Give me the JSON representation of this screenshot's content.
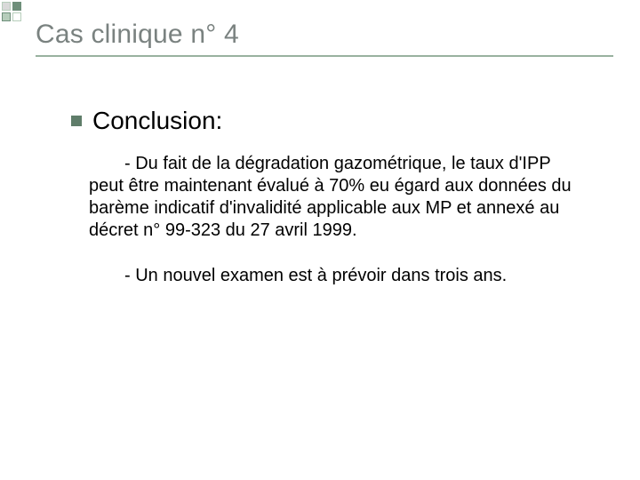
{
  "decor": {
    "squares": [
      {
        "bg": "#d9d9d9",
        "border": "#b6cdbb"
      },
      {
        "bg": "#6e8f7a",
        "border": "#6e8f7a"
      },
      {
        "bg": "#b6cdbb",
        "border": "#6e8f7a"
      },
      {
        "bg": "#ffffff",
        "border": "#b6cdbb"
      }
    ]
  },
  "title": {
    "text": "Cas clinique n° 4",
    "color": "#7a8280",
    "underline_color": "#98b29f"
  },
  "bullet": {
    "color": "#5f7d6a"
  },
  "heading": {
    "text": "Conclusion:",
    "fontsize": 28
  },
  "paragraphs": [
    "- Du fait de la dégradation gazométrique, le taux d'IPP peut être maintenant évalué à 70% eu égard aux données du barème indicatif d'invalidité applicable aux MP et annexé au décret n° 99-323 du 27 avril 1999.",
    "- Un nouvel examen est à prévoir dans trois ans."
  ],
  "body_fontsize": 20
}
